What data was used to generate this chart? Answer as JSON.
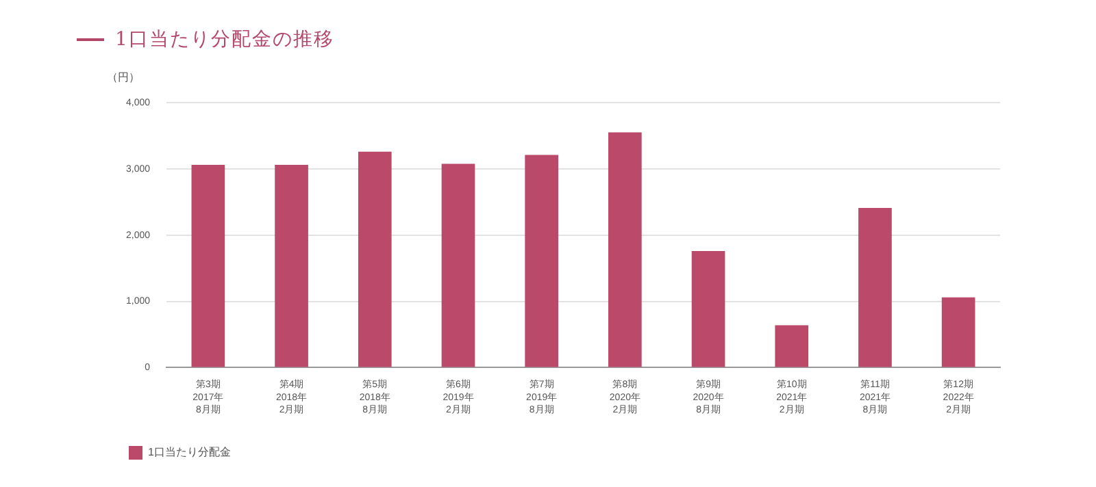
{
  "chart_data": {
    "type": "bar",
    "title": "1口当たり分配金の推移",
    "ylabel": "（円）",
    "categories": [
      "第3期\n2017年\n8月期",
      "第4期\n2018年\n2月期",
      "第5期\n2018年\n8月期",
      "第6期\n2019年\n2月期",
      "第7期\n2019年\n8月期",
      "第8期\n2020年\n2月期",
      "第9期\n2020年\n8月期",
      "第10期\n2021年\n2月期",
      "第11期\n2021年\n8月期",
      "第12期\n2022年\n2月期"
    ],
    "series": [
      {
        "name": "1口当たり分配金",
        "color": "#bb4a6a",
        "values": [
          3060,
          3060,
          3260,
          3075,
          3210,
          3550,
          1760,
          640,
          2410,
          1060
        ]
      }
    ],
    "ylim": [
      0,
      4000
    ],
    "yticks": [
      {
        "value": 0,
        "label": "0"
      },
      {
        "value": 1000,
        "label": "1,000"
      },
      {
        "value": 2000,
        "label": "2,000"
      },
      {
        "value": 3000,
        "label": "3,000"
      },
      {
        "value": 4000,
        "label": "4,000"
      }
    ],
    "grid": "y",
    "legend": "bottom left"
  }
}
